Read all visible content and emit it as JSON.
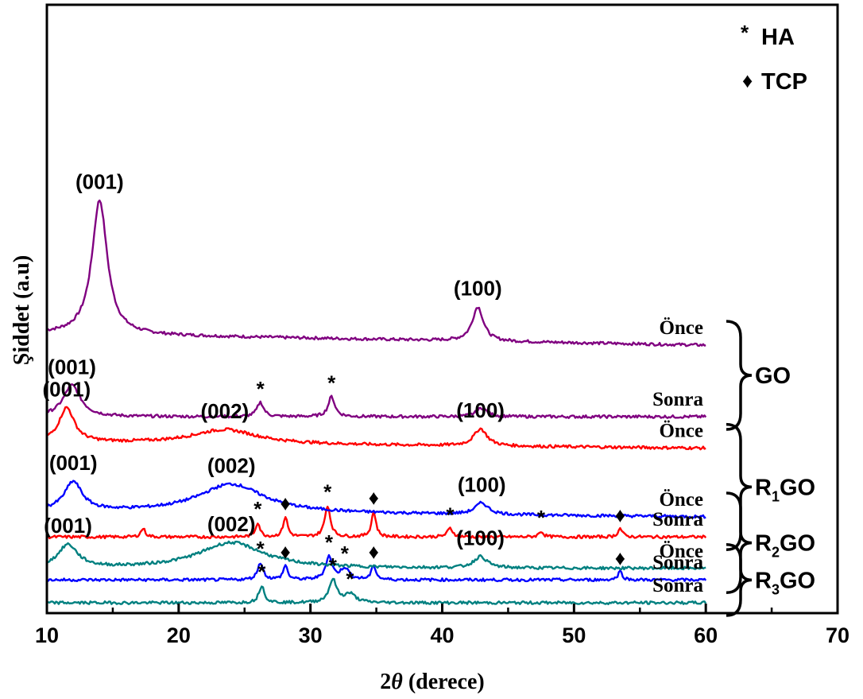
{
  "chart_data": {
    "type": "line",
    "xlabel": "2θ (derece)",
    "xlabel_prefix": "2",
    "xlabel_symbol": "θ",
    "xlabel_suffix": " (derece)",
    "ylabel": "Şiddet (a.u)",
    "xlim": [
      10,
      70
    ],
    "x_ticks": [
      "10",
      "20",
      "30",
      "40",
      "50",
      "60",
      "70"
    ],
    "y_ticks_shown": false,
    "legend": {
      "position": "top-right",
      "entries": [
        {
          "symbol": "*",
          "label": "HA"
        },
        {
          "symbol": "♦",
          "label": "TCP"
        }
      ]
    },
    "series": [
      {
        "name": "GO Önce",
        "color": "#800080",
        "group": "GO",
        "state": "Önce",
        "base": 94,
        "end": 90,
        "bg": [
          [
            10,
            0
          ],
          [
            20,
            0
          ],
          [
            30,
            0
          ],
          [
            40,
            0
          ],
          [
            50,
            0
          ],
          [
            60,
            0
          ]
        ],
        "peaks": [
          {
            "x": 14.0,
            "h": 47,
            "w": 0.7,
            "label": "(001)"
          },
          {
            "x": 42.7,
            "h": 12,
            "w": 0.5,
            "label": "(100)"
          }
        ]
      },
      {
        "name": "GO Sonra",
        "color": "#800080",
        "group": "GO",
        "state": "Sonra",
        "base": 65,
        "end": 65,
        "bg": [
          [
            10,
            0
          ],
          [
            20,
            0
          ],
          [
            30,
            0
          ],
          [
            40,
            0
          ],
          [
            50,
            0
          ],
          [
            60,
            0
          ]
        ],
        "peaks": [
          {
            "x": 11.9,
            "h": 11,
            "w": 0.8,
            "label": "(001)"
          },
          {
            "x": 26.2,
            "h": 5,
            "w": 0.3,
            "marker": "*"
          },
          {
            "x": 31.6,
            "h": 7,
            "w": 0.3,
            "marker": "*"
          },
          {
            "x": 43.0,
            "h": 3,
            "w": 0.5
          }
        ]
      },
      {
        "name": "R1GO Önce",
        "color": "#ff0000",
        "group": "R1GO",
        "state": "Önce",
        "base": 56,
        "end": 54,
        "bg": [
          [
            10,
            0
          ],
          [
            20,
            0
          ],
          [
            30,
            0
          ],
          [
            40,
            0
          ],
          [
            50,
            0
          ],
          [
            60,
            0
          ]
        ],
        "peaks": [
          {
            "x": 11.5,
            "h": 12,
            "w": 0.7,
            "label": "(001)"
          },
          {
            "x": 23.5,
            "h": 5,
            "w": 3.0,
            "label": "(002)"
          },
          {
            "x": 42.9,
            "h": 6,
            "w": 0.6,
            "label": "(100)"
          }
        ]
      },
      {
        "name": "R1GO Sonra",
        "color": "#ff0000",
        "group": "R1GO",
        "state": "Sonra",
        "base": 23,
        "end": 23,
        "bg": [
          [
            10,
            0
          ],
          [
            20,
            0
          ],
          [
            30,
            0
          ],
          [
            40,
            0
          ],
          [
            50,
            0
          ],
          [
            60,
            0
          ]
        ],
        "peaks": [
          {
            "x": 17.3,
            "h": 3,
            "w": 0.2
          },
          {
            "x": 26.0,
            "h": 5,
            "w": 0.2,
            "marker": "*"
          },
          {
            "x": 28.1,
            "h": 7,
            "w": 0.2,
            "marker": "♦"
          },
          {
            "x": 31.3,
            "h": 11,
            "w": 0.25,
            "marker": "*"
          },
          {
            "x": 34.8,
            "h": 9,
            "w": 0.2,
            "marker": "♦"
          },
          {
            "x": 40.6,
            "h": 3,
            "w": 0.25,
            "marker": "*"
          },
          {
            "x": 47.5,
            "h": 2,
            "w": 0.2,
            "marker": "*"
          },
          {
            "x": 53.5,
            "h": 3,
            "w": 0.2,
            "marker": "♦"
          }
        ]
      },
      {
        "name": "R2GO Önce",
        "color": "#0000ff",
        "group": "R2GO",
        "state": "Önce",
        "base": 32,
        "end": 30,
        "bg": [
          [
            10,
            0
          ],
          [
            20,
            0
          ],
          [
            30,
            0
          ],
          [
            40,
            0
          ],
          [
            50,
            0
          ],
          [
            60,
            0
          ]
        ],
        "peaks": [
          {
            "x": 12.0,
            "h": 10,
            "w": 0.8,
            "label": "(001)"
          },
          {
            "x": 24.0,
            "h": 10,
            "w": 3.0,
            "label": "(002)"
          },
          {
            "x": 43.0,
            "h": 4,
            "w": 0.6,
            "label": "(100)"
          }
        ]
      },
      {
        "name": "R2GO Sonra",
        "color": "#0000ff",
        "group": "R2GO",
        "state": "Sonra",
        "base": 8,
        "end": 8,
        "bg": [
          [
            10,
            0
          ],
          [
            20,
            0
          ],
          [
            30,
            0
          ],
          [
            40,
            0
          ],
          [
            50,
            0
          ],
          [
            60,
            0
          ]
        ],
        "peaks": [
          {
            "x": 26.2,
            "h": 6,
            "w": 0.25,
            "marker": "*"
          },
          {
            "x": 28.1,
            "h": 5,
            "w": 0.2,
            "marker": "♦"
          },
          {
            "x": 31.4,
            "h": 8,
            "w": 0.3,
            "marker": "*"
          },
          {
            "x": 32.6,
            "h": 4,
            "w": 0.4,
            "marker": "*"
          },
          {
            "x": 34.8,
            "h": 5,
            "w": 0.2,
            "marker": "♦"
          },
          {
            "x": 53.5,
            "h": 3,
            "w": 0.2,
            "marker": "♦"
          }
        ]
      },
      {
        "name": "R3GO Önce",
        "color": "#008080",
        "group": "R3GO",
        "state": "Önce",
        "base": 12,
        "end": 12,
        "bg": [
          [
            10,
            0
          ],
          [
            20,
            0
          ],
          [
            30,
            0
          ],
          [
            40,
            0
          ],
          [
            50,
            0
          ],
          [
            60,
            0
          ]
        ],
        "peaks": [
          {
            "x": 11.6,
            "h": 8,
            "w": 0.9,
            "label": "(001)"
          },
          {
            "x": 24.0,
            "h": 9,
            "w": 3.0,
            "label": "(002)"
          },
          {
            "x": 42.9,
            "h": 4,
            "w": 0.6,
            "label": "(100)"
          }
        ]
      },
      {
        "name": "R3GO Sonra",
        "color": "#008080",
        "group": "R3GO",
        "state": "Sonra",
        "base": 0,
        "end": 0,
        "bg": [
          [
            10,
            0
          ],
          [
            20,
            0
          ],
          [
            30,
            0
          ],
          [
            40,
            0
          ],
          [
            50,
            0
          ],
          [
            60,
            0
          ]
        ],
        "peaks": [
          {
            "x": 26.3,
            "h": 6,
            "w": 0.25,
            "marker": "*"
          },
          {
            "x": 31.7,
            "h": 8,
            "w": 0.35,
            "marker": "*"
          },
          {
            "x": 33.0,
            "h": 3,
            "w": 0.5,
            "marker": "*"
          }
        ]
      }
    ],
    "groups": [
      {
        "name": "GO",
        "sub": "",
        "rest": "",
        "states": [
          "Önce",
          "Sonra"
        ]
      },
      {
        "name": "R",
        "sub": "1",
        "rest": "GO",
        "states": [
          "Önce",
          "Sonra"
        ]
      },
      {
        "name": "R",
        "sub": "2",
        "rest": "GO",
        "states": [
          "Önce",
          "Sonra"
        ]
      },
      {
        "name": "R",
        "sub": "3",
        "rest": "GO",
        "states": [
          "Önce",
          "Sonra"
        ]
      }
    ]
  }
}
